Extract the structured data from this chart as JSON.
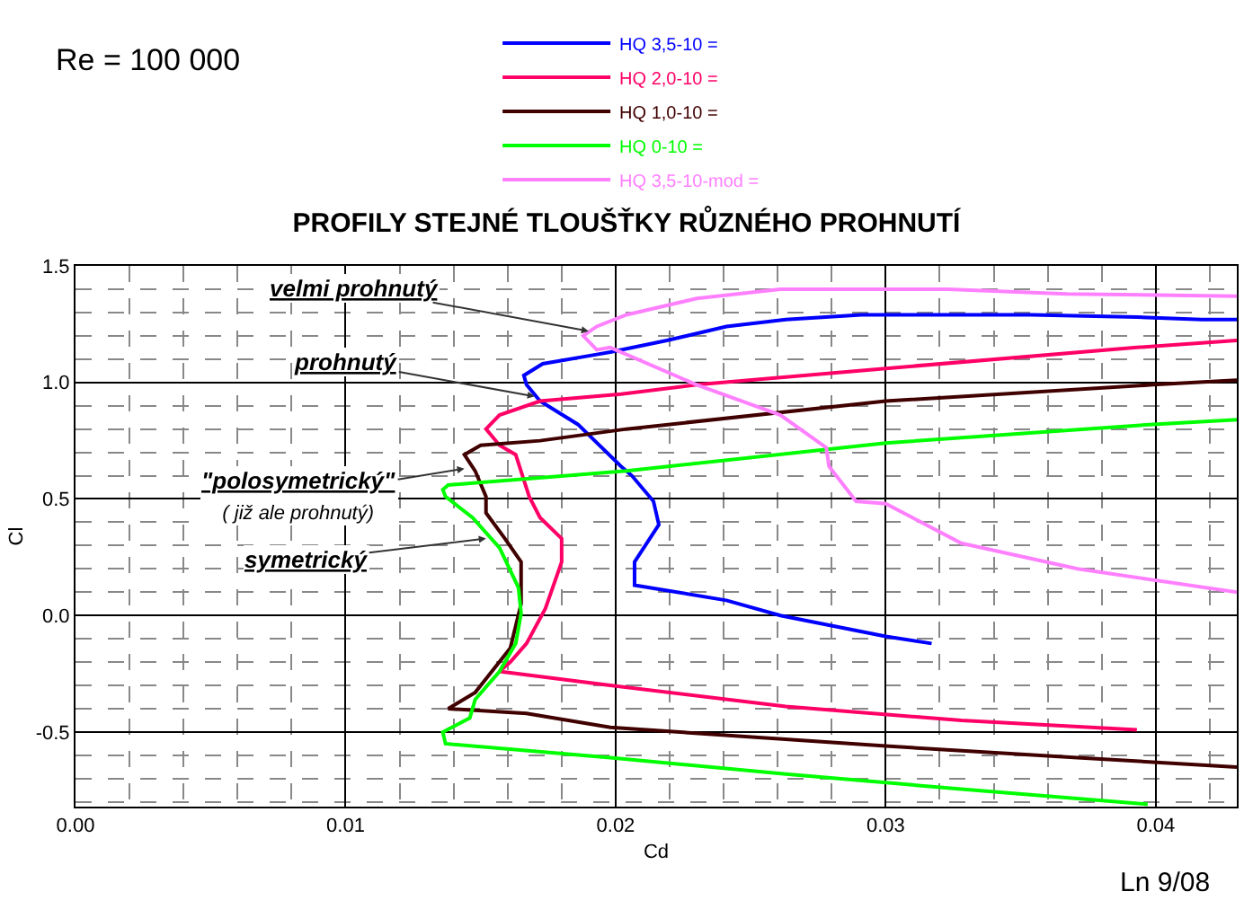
{
  "chart_data": {
    "type": "line",
    "title": "PROFILY STEJNÉ TLOUŠŤKY RŮZNÉHO PROHNUTÍ",
    "xlabel": "Cd",
    "ylabel": "Cl",
    "xlim": [
      0,
      0.043
    ],
    "ylim": [
      -0.82,
      1.5
    ],
    "xticks": [
      {
        "value": 0,
        "label": "0.00"
      },
      0.01,
      0.02,
      0.03,
      0.04
    ],
    "yticks": [
      -0.5,
      {
        "value": 0,
        "label": "0.0"
      },
      0.5,
      {
        "value": 1,
        "label": "1.0"
      },
      1.5
    ],
    "grid": true,
    "legend": "top",
    "marker": "none",
    "line_style": "solid",
    "series": [
      {
        "name": "HQ 3,5-10 =",
        "color": "#0000ff",
        "x": [
          0.0317,
          0.03,
          0.0261,
          0.0241,
          0.0207,
          0.0207,
          0.0216,
          0.0214,
          0.0206,
          0.0202,
          0.0186,
          0.0172,
          0.0167,
          0.0166,
          0.0173,
          0.0193,
          0.0198,
          0.0219,
          0.0241,
          0.0263,
          0.0291,
          0.0354,
          0.0393,
          0.0417,
          0.043
        ],
        "values": [
          -0.12,
          -0.09,
          0.0,
          0.065,
          0.13,
          0.23,
          0.39,
          0.49,
          0.6,
          0.64,
          0.82,
          0.92,
          0.99,
          1.03,
          1.08,
          1.12,
          1.13,
          1.18,
          1.24,
          1.27,
          1.29,
          1.29,
          1.28,
          1.27,
          1.27
        ]
      },
      {
        "name": "HQ 2,0-10 =",
        "color": "#ff0066",
        "x": [
          0.0393,
          0.0328,
          0.0263,
          0.0198,
          0.0157,
          0.0161,
          0.0167,
          0.0174,
          0.018,
          0.018,
          0.0172,
          0.0168,
          0.0163,
          0.0157,
          0.0152,
          0.0157,
          0.0172,
          0.0202,
          0.023,
          0.03,
          0.0393,
          0.043
        ],
        "values": [
          -0.49,
          -0.45,
          -0.39,
          -0.3,
          -0.24,
          -0.2,
          -0.12,
          0.03,
          0.23,
          0.33,
          0.42,
          0.51,
          0.69,
          0.73,
          0.8,
          0.86,
          0.92,
          0.95,
          0.99,
          1.06,
          1.15,
          1.18
        ]
      },
      {
        "name": "HQ 1,0-10 =",
        "color": "#400000",
        "x": [
          0.043,
          0.0371,
          0.03,
          0.0198,
          0.0167,
          0.0138,
          0.0148,
          0.0161,
          0.0165,
          0.0165,
          0.0159,
          0.0152,
          0.0152,
          0.0148,
          0.0144,
          0.015,
          0.0172,
          0.0204,
          0.03,
          0.0399,
          0.043
        ],
        "values": [
          -0.65,
          -0.61,
          -0.56,
          -0.48,
          -0.42,
          -0.4,
          -0.33,
          -0.14,
          0.05,
          0.23,
          0.33,
          0.44,
          0.51,
          0.62,
          0.69,
          0.73,
          0.75,
          0.8,
          0.92,
          0.99,
          1.01
        ]
      },
      {
        "name": "HQ 0-10 =",
        "color": "#00ff00",
        "x": [
          0.0397,
          0.0328,
          0.0263,
          0.0198,
          0.0137,
          0.0136,
          0.0146,
          0.0148,
          0.0157,
          0.0163,
          0.0165,
          0.0164,
          0.0157,
          0.0147,
          0.0137,
          0.0136,
          0.0138,
          0.0204,
          0.03,
          0.0399,
          0.043
        ],
        "values": [
          -0.81,
          -0.745,
          -0.68,
          -0.61,
          -0.55,
          -0.5,
          -0.44,
          -0.36,
          -0.24,
          -0.12,
          0.01,
          0.12,
          0.29,
          0.42,
          0.51,
          0.54,
          0.56,
          0.62,
          0.74,
          0.82,
          0.84
        ]
      },
      {
        "name": "HQ 3,5-10-mod =",
        "color": "#ff80ff",
        "x": [
          0.043,
          0.0371,
          0.0328,
          0.03,
          0.0289,
          0.0279,
          0.0278,
          0.0261,
          0.023,
          0.0198,
          0.0193,
          0.0188,
          0.0193,
          0.0204,
          0.023,
          0.0261,
          0.0323,
          0.0367,
          0.043
        ],
        "values": [
          0.1,
          0.2,
          0.31,
          0.48,
          0.49,
          0.64,
          0.72,
          0.86,
          0.99,
          1.15,
          1.14,
          1.2,
          1.24,
          1.29,
          1.36,
          1.4,
          1.4,
          1.38,
          1.37
        ]
      }
    ],
    "annotations": [
      "Re = 100 000",
      {
        "text": "velmi prohnutý",
        "x": 0.019,
        "y": 1.22
      },
      {
        "text": "prohnutý",
        "x": 0.017,
        "y": 0.94
      },
      {
        "text": "\"polosymetrický\"\n( již ale prohnutý)",
        "x": 0.0144,
        "y": 0.63
      },
      {
        "text": "symetrický",
        "x": 0.0152,
        "y": 0.33
      },
      "Ln 9/08"
    ]
  }
}
